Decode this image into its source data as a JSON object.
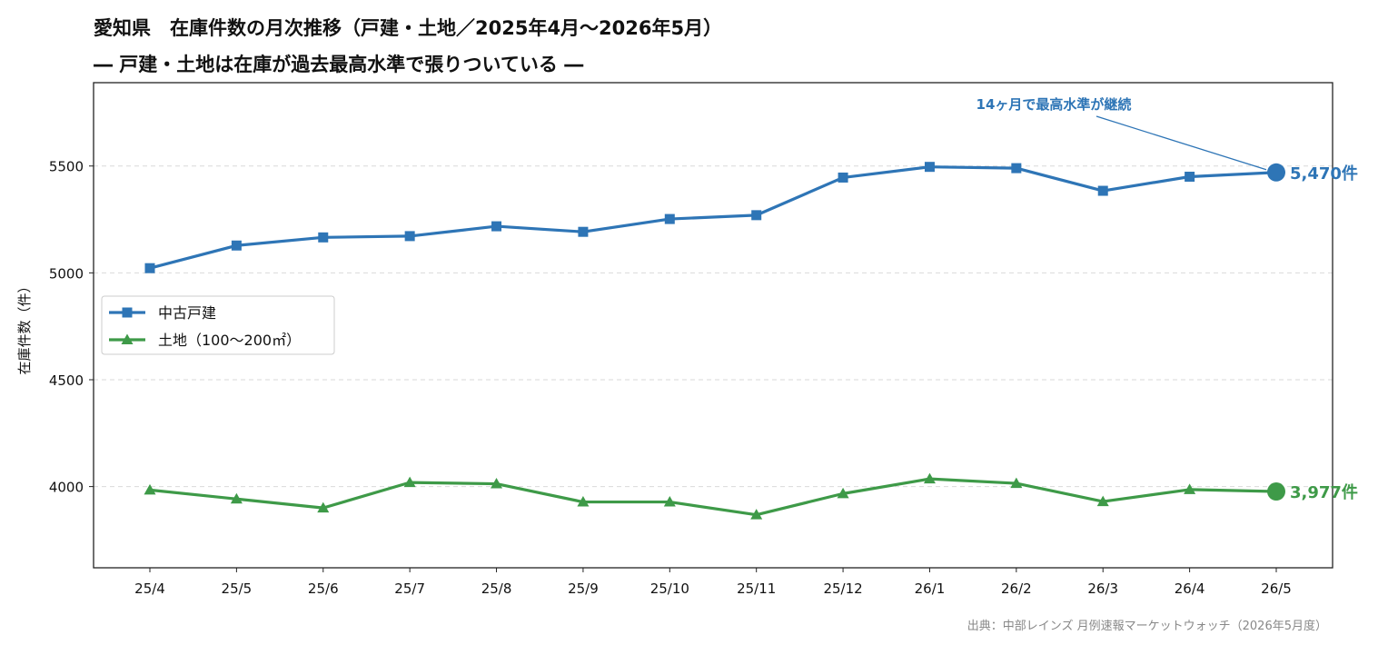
{
  "chart_data": {
    "type": "line",
    "title": "愛知県　在庫件数の月次推移（戸建・土地／2025年4月〜2026年5月）",
    "subtitle": "― 戸建・土地は在庫が過去最高水準で張りついている ―",
    "ylabel": "在庫件数（件）",
    "xlabel": "",
    "categories": [
      "25/4",
      "25/5",
      "25/6",
      "25/7",
      "25/8",
      "25/9",
      "25/10",
      "25/11",
      "25/12",
      "26/1",
      "26/2",
      "26/3",
      "26/4",
      "26/5"
    ],
    "yticks": [
      4000,
      4500,
      5000,
      5500
    ],
    "ylim": [
      3620,
      5890
    ],
    "grid": "horizontal dashed",
    "legend_position": "center-left",
    "series": [
      {
        "name": "中古戸建",
        "color": "#2e75b6",
        "marker": "square",
        "values": [
          5022,
          5128,
          5166,
          5172,
          5218,
          5192,
          5252,
          5270,
          5446,
          5496,
          5490,
          5384,
          5450,
          5470
        ],
        "end_label": "5,470件"
      },
      {
        "name": "土地（100〜200㎡）",
        "color": "#3e9a48",
        "marker": "triangle",
        "values": [
          3984,
          3942,
          3900,
          4019,
          4013,
          3928,
          3928,
          3868,
          3967,
          4036,
          4015,
          3930,
          3986,
          3977
        ],
        "end_label": "3,977件"
      }
    ],
    "annotation": {
      "text": "14ヶ月で最高水準が継続",
      "color": "#2e75b6"
    }
  },
  "source": "出典：中部レインズ 月例速報マーケットウォッチ（2026年5月度）"
}
